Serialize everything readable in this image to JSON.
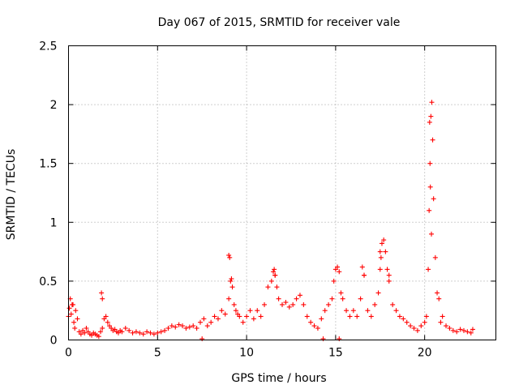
{
  "chart_data": {
    "type": "scatter",
    "title": "Day 067 of 2015, SRMTID for receiver vale",
    "xlabel": "GPS time / hours",
    "ylabel": "SRMTID / TECUs",
    "xlim": [
      0,
      24
    ],
    "ylim": [
      0,
      2.5
    ],
    "xticks": [
      0,
      5,
      10,
      15,
      20
    ],
    "xtick_labels": [
      "0",
      "5",
      "10",
      "15",
      "20"
    ],
    "yticks": [
      0,
      0.5,
      1,
      1.5,
      2,
      2.5
    ],
    "ytick_labels": [
      "0",
      "0.5",
      "1",
      "1.5",
      "2",
      "2.5"
    ],
    "grid": true,
    "marker": "+",
    "color": "#ff0000",
    "series": [
      {
        "name": "SRMTID",
        "x": [
          0.0,
          0.1,
          0.2,
          0.3,
          0.4,
          0.5,
          0.6,
          0.7,
          0.8,
          0.9,
          1.0,
          1.1,
          1.2,
          1.3,
          1.4,
          1.5,
          1.6,
          1.7,
          1.8,
          1.9,
          2.0,
          2.1,
          2.2,
          2.3,
          2.4,
          2.5,
          2.6,
          2.7,
          2.8,
          2.9,
          3.0,
          3.2,
          3.4,
          3.6,
          3.8,
          4.0,
          4.2,
          4.4,
          4.6,
          4.8,
          5.0,
          5.2,
          5.4,
          5.6,
          5.8,
          6.0,
          6.2,
          6.4,
          6.6,
          6.8,
          7.0,
          7.2,
          7.4,
          7.6,
          7.8,
          8.0,
          8.2,
          8.4,
          8.6,
          8.8,
          9.0,
          9.1,
          9.2,
          9.3,
          9.4,
          9.5,
          9.6,
          9.8,
          10.0,
          10.2,
          10.4,
          10.6,
          10.8,
          11.0,
          11.2,
          11.4,
          11.5,
          11.6,
          11.7,
          11.8,
          12.0,
          12.2,
          12.4,
          12.6,
          12.8,
          13.0,
          13.2,
          13.4,
          13.6,
          13.8,
          14.0,
          14.2,
          14.4,
          14.6,
          14.8,
          14.9,
          15.0,
          15.1,
          15.2,
          15.3,
          15.4,
          15.6,
          15.8,
          16.0,
          16.2,
          16.4,
          16.6,
          16.8,
          17.0,
          17.2,
          17.4,
          17.5,
          17.6,
          17.7,
          17.8,
          17.9,
          18.0,
          18.2,
          18.4,
          18.6,
          18.8,
          19.0,
          19.2,
          19.4,
          19.6,
          19.8,
          20.0,
          20.1,
          20.2,
          20.25,
          20.3,
          20.35,
          20.4,
          20.45,
          20.5,
          20.6,
          20.7,
          20.8,
          20.9,
          21.0,
          21.2,
          21.4,
          21.6,
          21.8,
          22.0,
          22.2,
          22.4,
          22.6,
          22.7,
          0.05,
          0.15,
          0.25,
          0.35,
          1.85,
          1.9,
          7.5,
          9.0,
          9.05,
          9.15,
          11.55,
          11.6,
          14.3,
          15.2,
          16.5,
          16.6,
          17.5,
          17.55,
          18.0,
          20.28,
          20.32,
          20.38
        ],
        "y": [
          0.2,
          0.35,
          0.3,
          0.15,
          0.25,
          0.18,
          0.07,
          0.05,
          0.08,
          0.06,
          0.1,
          0.07,
          0.05,
          0.04,
          0.06,
          0.05,
          0.04,
          0.03,
          0.07,
          0.35,
          0.18,
          0.2,
          0.15,
          0.12,
          0.1,
          0.08,
          0.09,
          0.07,
          0.06,
          0.08,
          0.07,
          0.1,
          0.08,
          0.06,
          0.07,
          0.06,
          0.05,
          0.07,
          0.06,
          0.05,
          0.06,
          0.07,
          0.08,
          0.1,
          0.12,
          0.11,
          0.13,
          0.12,
          0.1,
          0.11,
          0.12,
          0.1,
          0.15,
          0.18,
          0.12,
          0.15,
          0.2,
          0.18,
          0.25,
          0.22,
          0.35,
          0.5,
          0.45,
          0.3,
          0.25,
          0.22,
          0.2,
          0.15,
          0.2,
          0.25,
          0.18,
          0.25,
          0.2,
          0.3,
          0.45,
          0.5,
          0.58,
          0.55,
          0.45,
          0.35,
          0.3,
          0.32,
          0.28,
          0.3,
          0.35,
          0.38,
          0.3,
          0.2,
          0.15,
          0.12,
          0.1,
          0.18,
          0.25,
          0.3,
          0.35,
          0.5,
          0.6,
          0.62,
          0.58,
          0.4,
          0.35,
          0.25,
          0.2,
          0.25,
          0.2,
          0.35,
          0.55,
          0.25,
          0.2,
          0.3,
          0.4,
          0.6,
          0.82,
          0.85,
          0.75,
          0.6,
          0.5,
          0.3,
          0.25,
          0.2,
          0.18,
          0.15,
          0.12,
          0.1,
          0.08,
          0.12,
          0.15,
          0.2,
          0.6,
          1.1,
          1.5,
          1.9,
          2.02,
          1.7,
          1.2,
          0.7,
          0.4,
          0.35,
          0.15,
          0.2,
          0.12,
          0.1,
          0.08,
          0.07,
          0.09,
          0.08,
          0.07,
          0.06,
          0.09,
          0.27,
          0.22,
          0.3,
          0.1,
          0.4,
          0.1,
          0.01,
          0.72,
          0.7,
          0.52,
          0.6,
          0.55,
          0.01,
          0.01,
          0.62,
          0.55,
          0.75,
          0.7,
          0.55,
          1.85,
          1.3,
          0.9
        ]
      }
    ]
  }
}
